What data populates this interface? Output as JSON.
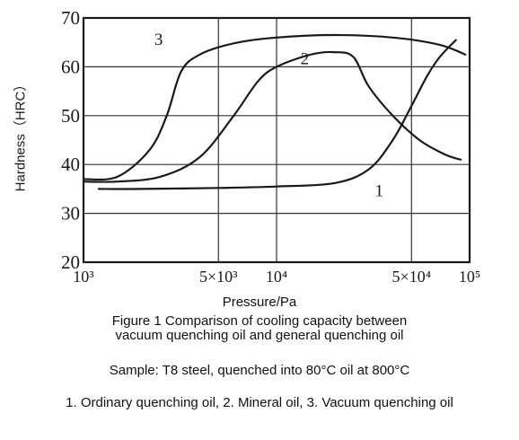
{
  "chart_data": {
    "type": "line",
    "title": "Figure 1 Comparison of cooling capacity between",
    "title_line2": "vacuum quenching oil and general quenching oil",
    "xlabel": "Pressure/Pa",
    "ylabel": "Hardness（HRC）",
    "x_scale": "log",
    "xlim": [
      1000,
      100000
    ],
    "ylim": [
      20,
      70
    ],
    "x_ticks": [
      {
        "value": 1000,
        "label": "10³"
      },
      {
        "value": 5000,
        "label": "5×10³"
      },
      {
        "value": 10000,
        "label": "10⁴"
      },
      {
        "value": 50000,
        "label": "5×10⁴"
      },
      {
        "value": 100000,
        "label": "10⁵"
      }
    ],
    "y_ticks": [
      20,
      30,
      40,
      50,
      60,
      70
    ],
    "grid": true,
    "series": [
      {
        "name": "1",
        "color": "#1a1a1a",
        "x": [
          1200,
          2000,
          5000,
          10000,
          20000,
          30000,
          40000,
          50000,
          60000,
          70000,
          85000
        ],
        "y": [
          35,
          35,
          35.2,
          35.5,
          36.2,
          39,
          45,
          52,
          58,
          62,
          65.5
        ]
      },
      {
        "name": "2",
        "color": "#1a1a1a",
        "x": [
          1000,
          1500,
          2500,
          4000,
          6000,
          8000,
          10000,
          15000,
          20000,
          25000,
          30000,
          40000,
          55000,
          75000,
          90000
        ],
        "y": [
          36.5,
          36.5,
          37.5,
          41.5,
          50,
          57,
          60,
          62.5,
          63,
          62,
          56,
          50,
          45,
          42,
          41
        ]
      },
      {
        "name": "3",
        "color": "#1a1a1a",
        "x": [
          1000,
          1500,
          2200,
          2700,
          3200,
          4000,
          6000,
          10000,
          20000,
          40000,
          70000,
          95000
        ],
        "y": [
          37,
          37.5,
          43,
          50,
          59,
          62.5,
          64.8,
          66,
          66.5,
          66,
          64.5,
          62.5
        ]
      }
    ],
    "curve_labels": [
      "3",
      "2",
      "1"
    ]
  },
  "captions": {
    "sample": "Sample: T8 steel, quenched into 80°C oil at 800°C",
    "legend": "1. Ordinary quenching oil,  2. Mineral oil,  3. Vacuum quenching oil"
  }
}
